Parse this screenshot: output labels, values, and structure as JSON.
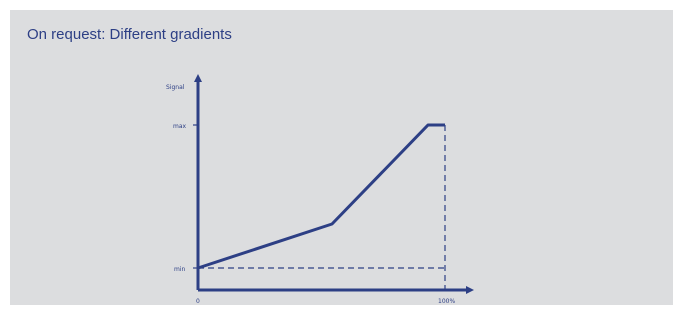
{
  "heading": "On request: Different gradients",
  "colors": {
    "panel": "#dcdddf",
    "ink": "#2d3f85"
  },
  "axes": {
    "y_label": "Signal",
    "y_max_label": "max",
    "y_min_label": "min",
    "x_origin_label": "0",
    "x_end_label": "100%"
  },
  "chart_data": {
    "type": "line",
    "title": "",
    "xlabel": "",
    "ylabel": "Signal",
    "series": [
      {
        "x": [
          0,
          57,
          100,
          106
        ],
        "y": [
          0,
          0.31,
          1,
          1
        ]
      }
    ],
    "reference_lines": [
      {
        "orientation": "horizontal",
        "at": "min",
        "style": "dashed"
      },
      {
        "orientation": "vertical",
        "at": "100%",
        "style": "dashed"
      }
    ]
  }
}
